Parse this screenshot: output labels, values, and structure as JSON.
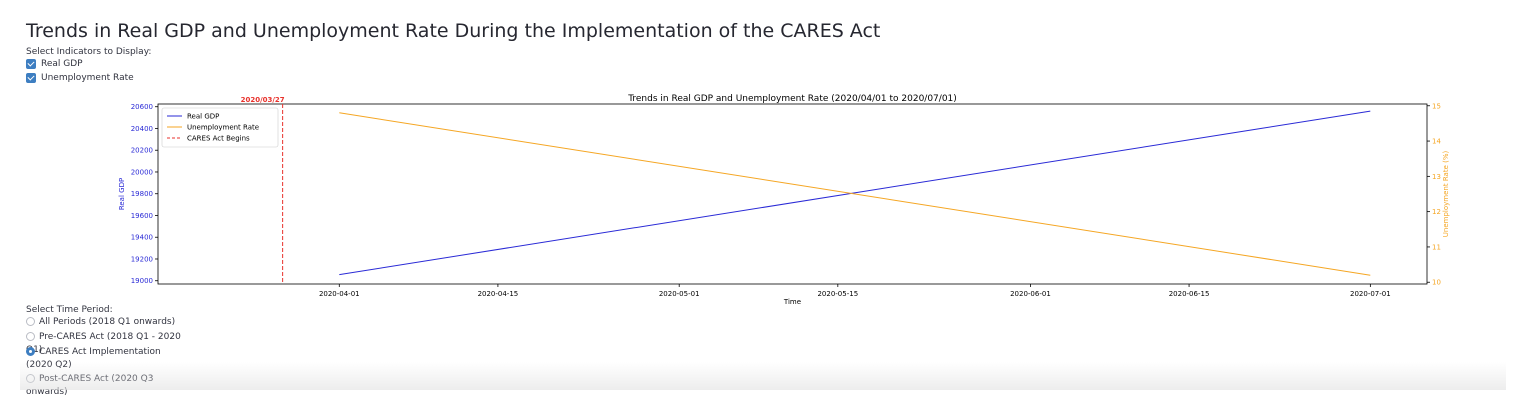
{
  "page": {
    "title": "Trends in Real GDP and Unemployment Rate During the Implementation of the CARES Act"
  },
  "indicators": {
    "label": "Select Indicators to Display:",
    "options": [
      {
        "label": "Real GDP",
        "checked": true
      },
      {
        "label": "Unemployment Rate",
        "checked": true
      }
    ]
  },
  "time_period": {
    "label": "Select Time Period:",
    "options": [
      {
        "label": "All Periods (2018 Q1 onwards)",
        "selected": false
      },
      {
        "label": "Pre-CARES Act (2018 Q1 - 2020 Q1)",
        "selected": false
      },
      {
        "label": "CARES Act Implementation (2020 Q2)",
        "selected": true
      },
      {
        "label": "Post-CARES Act (2020 Q3 onwards)",
        "selected": false
      }
    ]
  },
  "chart_data": {
    "type": "line",
    "title": "Trends in Real GDP and Unemployment Rate (2020/04/01 to 2020/07/01)",
    "xlabel": "Time",
    "ylabel_left": "Real GDP",
    "ylabel_right": "Unemployment Rate (%)",
    "x_range": [
      "2020-03-16",
      "2020-07-06"
    ],
    "x_ticks": [
      "2020-04-01",
      "2020-04-15",
      "2020-05-01",
      "2020-05-15",
      "2020-06-01",
      "2020-06-15",
      "2020-07-01"
    ],
    "ylim_left": [
      18970,
      20625
    ],
    "yticks_left": [
      19000,
      19200,
      19400,
      19600,
      19800,
      20000,
      20200,
      20400,
      20600
    ],
    "ylim_right": [
      9.95,
      15.05
    ],
    "yticks_right": [
      10,
      11,
      12,
      13,
      14,
      15
    ],
    "series": [
      {
        "name": "Real GDP",
        "axis": "left",
        "color": "#2a2ad6",
        "x": [
          "2020-04-01",
          "2020-07-01"
        ],
        "values": [
          19056,
          20560
        ]
      },
      {
        "name": "Unemployment Rate",
        "axis": "right",
        "color": "#f5a623",
        "x": [
          "2020-04-01",
          "2020-07-01"
        ],
        "values": [
          14.8,
          10.2
        ]
      }
    ],
    "annotations": [
      {
        "type": "vline",
        "x": "2020-03-27",
        "label": "2020/03/27",
        "legend": "CARES Act Begins",
        "color": "#e8322c"
      }
    ],
    "legend": "top-left",
    "grid": false
  }
}
